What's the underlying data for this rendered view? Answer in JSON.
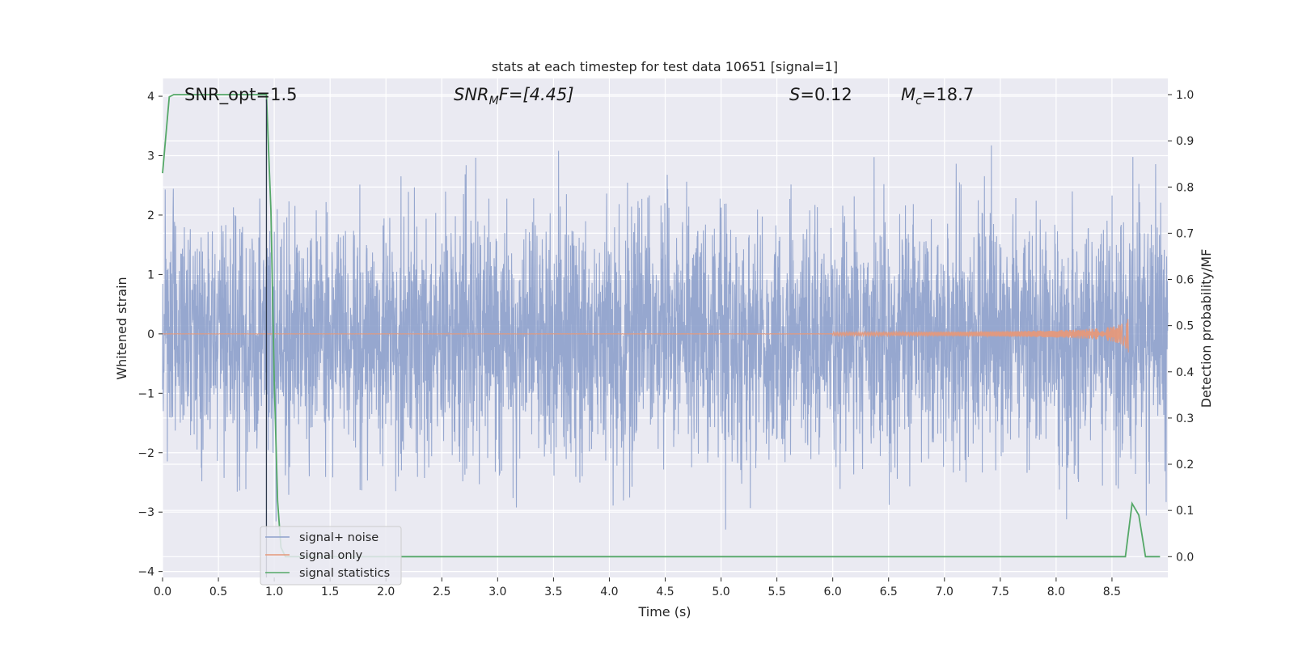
{
  "chart_data": {
    "type": "line",
    "title": "stats at each timestep for test data 10651 [signal=1]",
    "xlabel": "Time (s)",
    "ylabel": "Whitened strain",
    "ylabel_right": "Detection probability/MF",
    "xlim": [
      0.0,
      9.0
    ],
    "ylim": [
      -4.1,
      4.3
    ],
    "ylim_right": [
      -0.045,
      1.035
    ],
    "x_ticks": [
      0.0,
      0.5,
      1.0,
      1.5,
      2.0,
      2.5,
      3.0,
      3.5,
      4.0,
      4.5,
      5.0,
      5.5,
      6.0,
      6.5,
      7.0,
      7.5,
      8.0,
      8.5
    ],
    "x_tick_labels": [
      "0.0",
      "0.5",
      "1.0",
      "1.5",
      "2.0",
      "2.5",
      "3.0",
      "3.5",
      "4.0",
      "4.5",
      "5.0",
      "5.5",
      "6.0",
      "6.5",
      "7.0",
      "7.5",
      "8.0",
      "8.5"
    ],
    "y_ticks": [
      4,
      3,
      2,
      1,
      0,
      -1,
      -2,
      -3,
      -4
    ],
    "y_tick_labels": [
      "4",
      "3",
      "2",
      "1",
      "0",
      "−1",
      "−2",
      "−3",
      "−4"
    ],
    "y_right_ticks": [
      1.0,
      0.9,
      0.8,
      0.7,
      0.6,
      0.5,
      0.4,
      0.3,
      0.2,
      0.1,
      0.0
    ],
    "y_right_tick_labels": [
      "1.0",
      "0.9",
      "0.8",
      "0.7",
      "0.6",
      "0.5",
      "0.4",
      "0.3",
      "0.2",
      "0.1",
      "0.0"
    ],
    "grid": true,
    "legend": "lower-left",
    "annotations": {
      "snr_opt": "SNR_opt=1.5",
      "snr_mf_main": "SNR",
      "snr_mf_sub": "M",
      "snr_mf_rest": "F=[4.45]",
      "s_symbol": "S",
      "s_value": "=0.12",
      "mc_symbol": "M",
      "mc_sub": "c",
      "mc_value": "=18.7"
    },
    "series": [
      {
        "name": "signal+ noise",
        "axis": "left",
        "color": "#8da0cb",
        "description_note": "whitened noise trace, sampled rendition",
        "noise_sigma": 1.0,
        "x_range": [
          0.0,
          9.0
        ]
      },
      {
        "name": "signal only",
        "axis": "left",
        "color": "#e5987a",
        "x_range": [
          0.0,
          8.65
        ],
        "chirp_peak_time": 8.65,
        "chirp_peak_amplitude": 0.35
      },
      {
        "name": "signal statistics",
        "axis": "right",
        "color": "#55a868",
        "x": [
          0.0,
          0.06,
          0.1,
          0.2,
          0.3,
          0.4,
          0.5,
          0.6,
          0.7,
          0.8,
          0.9,
          0.93,
          0.97,
          1.0,
          1.03,
          1.06,
          1.1,
          1.5,
          2.0,
          3.0,
          4.0,
          5.0,
          6.0,
          7.0,
          8.0,
          8.55,
          8.62,
          8.68,
          8.74,
          8.8,
          8.86,
          8.93
        ],
        "y": [
          0.83,
          0.995,
          1.0,
          1.0,
          1.0,
          1.0,
          1.0,
          1.0,
          1.0,
          1.0,
          1.0,
          1.0,
          0.75,
          0.38,
          0.12,
          0.02,
          0.0,
          0.0,
          0.0,
          0.0,
          0.0,
          0.0,
          0.0,
          0.0,
          0.0,
          0.0,
          0.0,
          0.115,
          0.09,
          0.0,
          0.0,
          0.0
        ]
      }
    ],
    "vertical_line_x": 0.93
  }
}
